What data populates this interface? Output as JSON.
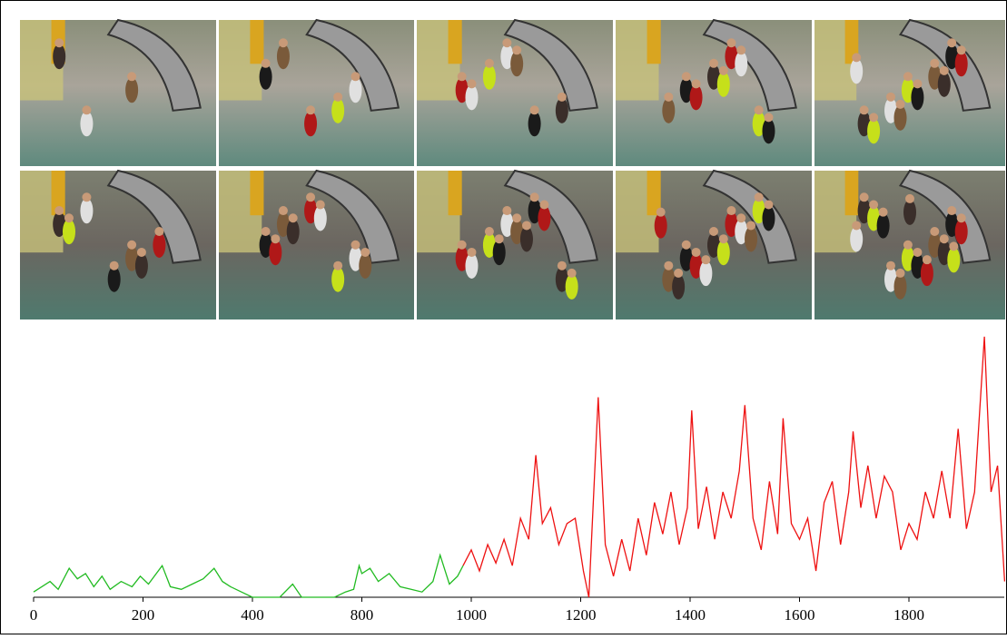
{
  "chart_data": {
    "type": "line",
    "xlim": [
      0,
      1975
    ],
    "ylim": [
      0,
      100
    ],
    "xticks": [
      0,
      200,
      400,
      800,
      1000,
      1200,
      1400,
      1600,
      1800
    ],
    "series": [
      {
        "color": "#22bb22",
        "x": [
          0,
          15,
          30,
          45,
          65,
          80,
          95,
          110,
          125,
          140,
          160,
          180,
          195,
          210,
          235,
          250,
          270,
          290,
          310,
          330,
          345,
          360,
          380,
          400,
          450,
          500,
          547,
          580,
          620,
          660,
          700,
          740,
          770,
          790,
          800,
          815,
          830,
          850,
          870,
          890,
          910,
          930,
          943,
          960,
          975,
          985
        ],
        "values": [
          2,
          4,
          6,
          3,
          11,
          7,
          9,
          4,
          8,
          3,
          6,
          4,
          8,
          5,
          12,
          4,
          3,
          5,
          7,
          11,
          6,
          4,
          2,
          0,
          0,
          0,
          5,
          0,
          0,
          0,
          0,
          2,
          3,
          12,
          9,
          11,
          6,
          9,
          4,
          3,
          2,
          6,
          16,
          5,
          8,
          12
        ]
      },
      {
        "color": "#ee1111",
        "x": [
          985,
          1000,
          1015,
          1030,
          1045,
          1060,
          1075,
          1090,
          1105,
          1118,
          1130,
          1145,
          1160,
          1175,
          1190,
          1205,
          1215,
          1232,
          1245,
          1260,
          1275,
          1290,
          1305,
          1320,
          1335,
          1350,
          1365,
          1380,
          1395,
          1403,
          1415,
          1430,
          1445,
          1460,
          1475,
          1490,
          1500,
          1515,
          1530,
          1545,
          1560,
          1570,
          1585,
          1600,
          1615,
          1630,
          1645,
          1660,
          1675,
          1690,
          1698,
          1712,
          1725,
          1740,
          1755,
          1770,
          1785,
          1800,
          1815,
          1830,
          1845,
          1860,
          1875,
          1890,
          1905,
          1920,
          1938,
          1950,
          1962,
          1975
        ],
        "values": [
          12,
          18,
          10,
          20,
          13,
          22,
          12,
          30,
          22,
          54,
          28,
          34,
          20,
          28,
          30,
          10,
          0,
          76,
          20,
          8,
          22,
          10,
          30,
          16,
          36,
          24,
          40,
          20,
          34,
          71,
          26,
          42,
          22,
          40,
          30,
          48,
          73,
          30,
          18,
          44,
          24,
          68,
          28,
          22,
          30,
          10,
          36,
          44,
          20,
          40,
          63,
          34,
          50,
          30,
          46,
          40,
          18,
          28,
          22,
          40,
          30,
          48,
          30,
          64,
          26,
          40,
          99,
          40,
          50,
          6
        ]
      }
    ]
  }
}
